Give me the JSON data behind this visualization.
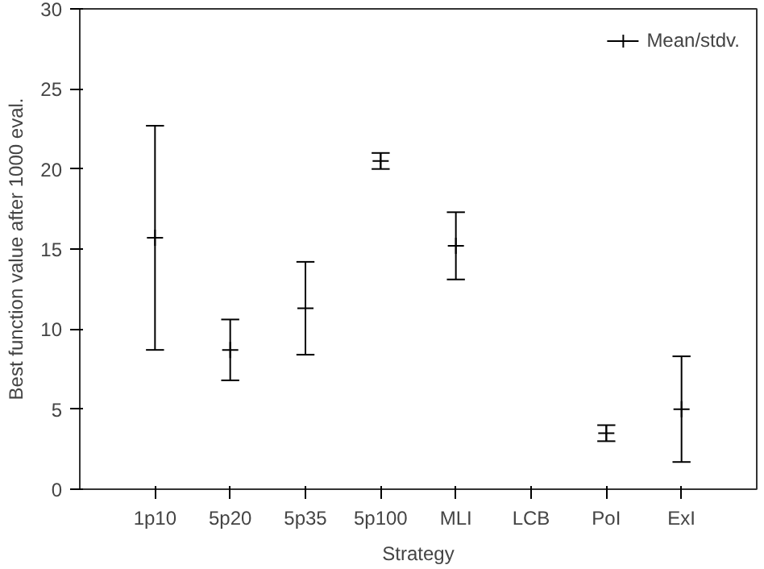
{
  "chart_data": {
    "type": "scatter",
    "xlabel": "Strategy",
    "ylabel": "Best function value after 1000 eval.",
    "categories": [
      "1p10",
      "5p20",
      "5p35",
      "5p100",
      "MLI",
      "LCB",
      "PoI",
      "ExI"
    ],
    "series": [
      {
        "name": "Mean/stdv.",
        "color": "#000000",
        "values": [
          15.7,
          8.7,
          11.3,
          20.5,
          15.2,
          null,
          3.5,
          5.0
        ],
        "errors": [
          7.0,
          1.9,
          2.9,
          0.5,
          2.1,
          null,
          0.5,
          3.3
        ]
      }
    ],
    "ylim": [
      0,
      30
    ],
    "yticks": [
      0,
      5,
      10,
      15,
      20,
      25,
      30
    ],
    "grid": false,
    "legend": "top right",
    "marker": "cross"
  }
}
